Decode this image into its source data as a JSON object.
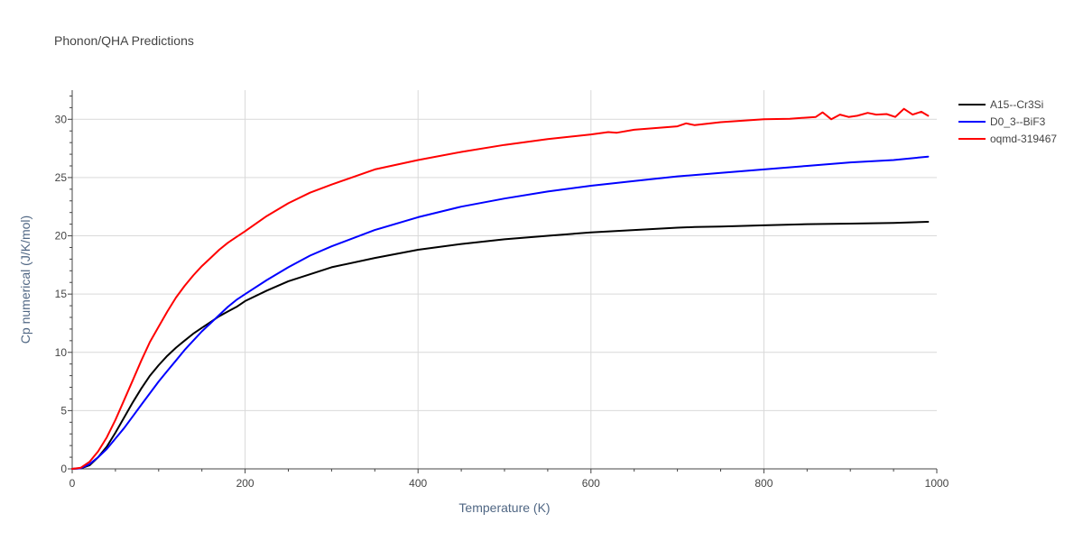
{
  "chart_data": {
    "type": "line",
    "title": "Phonon/QHA Predictions",
    "xlabel": "Temperature (K)",
    "ylabel": "Cp numerical (J/K/mol)",
    "xlim": [
      0,
      1000
    ],
    "ylim": [
      0,
      32.5
    ],
    "x_ticks": [
      0,
      200,
      400,
      600,
      800,
      1000
    ],
    "y_ticks": [
      0,
      5,
      10,
      15,
      20,
      25,
      30
    ],
    "grid": true,
    "legend_position": "top-right",
    "series": [
      {
        "name": "A15--Cr3Si",
        "color": "#000000",
        "points": [
          [
            0,
            0
          ],
          [
            10,
            0.05
          ],
          [
            20,
            0.3
          ],
          [
            30,
            1.0
          ],
          [
            40,
            1.9
          ],
          [
            50,
            3.1
          ],
          [
            60,
            4.4
          ],
          [
            70,
            5.7
          ],
          [
            80,
            6.9
          ],
          [
            90,
            8.0
          ],
          [
            100,
            8.9
          ],
          [
            110,
            9.7
          ],
          [
            120,
            10.4
          ],
          [
            130,
            11.0
          ],
          [
            140,
            11.6
          ],
          [
            150,
            12.1
          ],
          [
            160,
            12.6
          ],
          [
            170,
            13.1
          ],
          [
            180,
            13.5
          ],
          [
            190,
            13.9
          ],
          [
            200,
            14.4
          ],
          [
            225,
            15.3
          ],
          [
            250,
            16.1
          ],
          [
            275,
            16.7
          ],
          [
            300,
            17.3
          ],
          [
            350,
            18.1
          ],
          [
            400,
            18.8
          ],
          [
            450,
            19.3
          ],
          [
            500,
            19.7
          ],
          [
            550,
            20.0
          ],
          [
            600,
            20.3
          ],
          [
            650,
            20.5
          ],
          [
            700,
            20.7
          ],
          [
            720,
            20.75
          ],
          [
            750,
            20.8
          ],
          [
            800,
            20.9
          ],
          [
            850,
            21.0
          ],
          [
            900,
            21.05
          ],
          [
            950,
            21.1
          ],
          [
            990,
            21.2
          ]
        ]
      },
      {
        "name": "D0_3--BiF3",
        "color": "#0000ff",
        "points": [
          [
            0,
            0
          ],
          [
            10,
            0.05
          ],
          [
            20,
            0.4
          ],
          [
            30,
            1.0
          ],
          [
            40,
            1.7
          ],
          [
            50,
            2.6
          ],
          [
            60,
            3.5
          ],
          [
            70,
            4.5
          ],
          [
            80,
            5.5
          ],
          [
            90,
            6.5
          ],
          [
            100,
            7.5
          ],
          [
            110,
            8.4
          ],
          [
            120,
            9.3
          ],
          [
            130,
            10.2
          ],
          [
            140,
            11.0
          ],
          [
            150,
            11.8
          ],
          [
            160,
            12.5
          ],
          [
            170,
            13.2
          ],
          [
            180,
            13.9
          ],
          [
            190,
            14.5
          ],
          [
            200,
            15.0
          ],
          [
            225,
            16.2
          ],
          [
            250,
            17.3
          ],
          [
            275,
            18.3
          ],
          [
            300,
            19.1
          ],
          [
            350,
            20.5
          ],
          [
            400,
            21.6
          ],
          [
            450,
            22.5
          ],
          [
            500,
            23.2
          ],
          [
            550,
            23.8
          ],
          [
            600,
            24.3
          ],
          [
            650,
            24.7
          ],
          [
            700,
            25.1
          ],
          [
            750,
            25.4
          ],
          [
            800,
            25.7
          ],
          [
            850,
            26.0
          ],
          [
            900,
            26.3
          ],
          [
            950,
            26.5
          ],
          [
            990,
            26.8
          ]
        ]
      },
      {
        "name": "oqmd-319467",
        "color": "#ff0000",
        "points": [
          [
            0,
            0
          ],
          [
            10,
            0.1
          ],
          [
            20,
            0.6
          ],
          [
            30,
            1.5
          ],
          [
            40,
            2.7
          ],
          [
            50,
            4.2
          ],
          [
            60,
            5.9
          ],
          [
            70,
            7.6
          ],
          [
            80,
            9.3
          ],
          [
            90,
            10.9
          ],
          [
            100,
            12.2
          ],
          [
            110,
            13.5
          ],
          [
            120,
            14.7
          ],
          [
            130,
            15.7
          ],
          [
            140,
            16.6
          ],
          [
            150,
            17.4
          ],
          [
            160,
            18.1
          ],
          [
            170,
            18.8
          ],
          [
            180,
            19.4
          ],
          [
            190,
            19.9
          ],
          [
            200,
            20.4
          ],
          [
            225,
            21.7
          ],
          [
            250,
            22.8
          ],
          [
            275,
            23.7
          ],
          [
            300,
            24.4
          ],
          [
            350,
            25.7
          ],
          [
            400,
            26.5
          ],
          [
            450,
            27.2
          ],
          [
            500,
            27.8
          ],
          [
            550,
            28.3
          ],
          [
            600,
            28.7
          ],
          [
            620,
            28.9
          ],
          [
            630,
            28.85
          ],
          [
            650,
            29.1
          ],
          [
            700,
            29.4
          ],
          [
            710,
            29.65
          ],
          [
            720,
            29.5
          ],
          [
            750,
            29.75
          ],
          [
            800,
            30.0
          ],
          [
            830,
            30.05
          ],
          [
            860,
            30.2
          ],
          [
            868,
            30.6
          ],
          [
            878,
            30.0
          ],
          [
            888,
            30.4
          ],
          [
            898,
            30.2
          ],
          [
            908,
            30.3
          ],
          [
            920,
            30.55
          ],
          [
            930,
            30.4
          ],
          [
            942,
            30.45
          ],
          [
            952,
            30.2
          ],
          [
            962,
            30.9
          ],
          [
            972,
            30.4
          ],
          [
            982,
            30.65
          ],
          [
            990,
            30.3
          ]
        ]
      }
    ]
  }
}
